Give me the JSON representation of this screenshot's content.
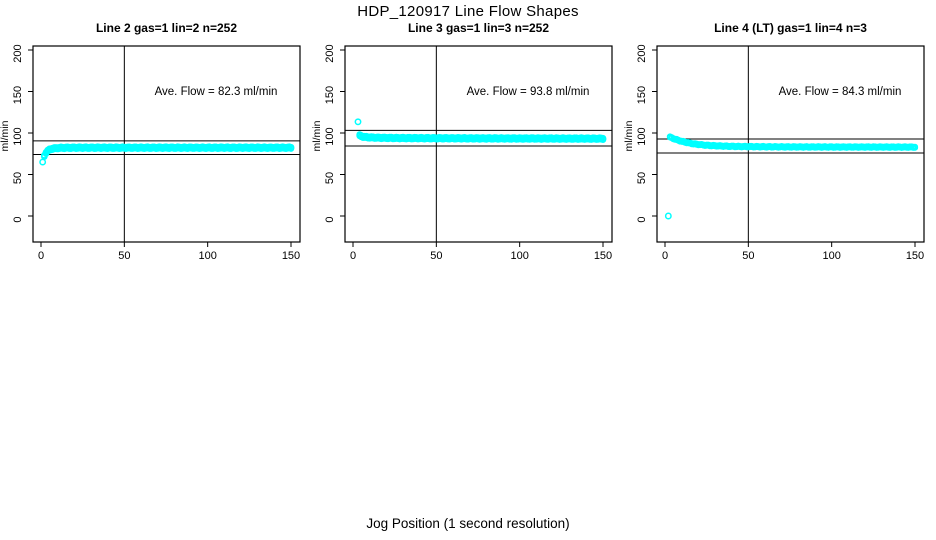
{
  "page": {
    "title": "HDP_120917  Line Flow Shapes",
    "xlabel": "Jog Position (1 second resolution)"
  },
  "chart_data": [
    {
      "type": "scatter",
      "title": "Line 2 gas=1 lin=2 n=252",
      "line": "Line 2",
      "gas": 1,
      "lin": 2,
      "n": 252,
      "ylabel": "ml/min",
      "annotation": "Ave. Flow =  82.3  ml/min",
      "ave_flow_ml_min": 82.3,
      "xticks": [
        0,
        50,
        100,
        150
      ],
      "yticks": [
        0,
        50,
        100,
        150,
        200
      ],
      "xlim": [
        0,
        150
      ],
      "ylim": [
        0,
        200
      ],
      "marker_color": "#00FFFF",
      "marker_shape": "open-circle",
      "vline_x": 50,
      "ref_lines_y": [
        90.5,
        74.1
      ],
      "outliers": [
        [
          1,
          65
        ]
      ],
      "curve": [
        [
          2,
          72.5
        ],
        [
          3,
          76.3
        ],
        [
          4,
          78.4
        ],
        [
          5,
          79.8
        ],
        [
          6,
          80.7
        ],
        [
          7,
          81.2
        ],
        [
          8,
          81.5
        ],
        [
          10,
          81.9
        ],
        [
          12,
          82.1
        ],
        [
          15,
          82.2
        ],
        [
          20,
          82.3
        ],
        [
          30,
          82.3
        ],
        [
          50,
          82.3
        ],
        [
          75,
          82.3
        ],
        [
          100,
          82.3
        ],
        [
          150,
          82.3
        ]
      ]
    },
    {
      "type": "scatter",
      "title": "Line 3 gas=1 lin=3 n=252",
      "line": "Line 3",
      "gas": 1,
      "lin": 3,
      "n": 252,
      "ylabel": "ml/min",
      "annotation": "Ave. Flow =  93.8  ml/min",
      "ave_flow_ml_min": 93.8,
      "xticks": [
        0,
        50,
        100,
        150
      ],
      "yticks": [
        0,
        50,
        100,
        150,
        200
      ],
      "xlim": [
        0,
        150
      ],
      "ylim": [
        0,
        200
      ],
      "marker_color": "#00FFFF",
      "marker_shape": "open-circle",
      "vline_x": 50,
      "ref_lines_y": [
        103.2,
        84.4
      ],
      "outliers": [
        [
          3,
          113.5
        ]
      ],
      "curve": [
        [
          4,
          97
        ],
        [
          5,
          96.2
        ],
        [
          6,
          95.6
        ],
        [
          7,
          95.2
        ],
        [
          8,
          95
        ],
        [
          10,
          94.7
        ],
        [
          12,
          94.5
        ],
        [
          15,
          94.3
        ],
        [
          20,
          94.1
        ],
        [
          30,
          93.9
        ],
        [
          50,
          93.7
        ],
        [
          75,
          93.5
        ],
        [
          100,
          93.4
        ],
        [
          125,
          93.3
        ],
        [
          150,
          93.2
        ]
      ]
    },
    {
      "type": "scatter",
      "title": "Line 4 (LT) gas=1 lin=4 n=3",
      "line": "Line 4 (LT)",
      "gas": 1,
      "lin": 4,
      "n": 3,
      "ylabel": "ml/min",
      "annotation": "Ave. Flow =  84.3  ml/min",
      "ave_flow_ml_min": 84.3,
      "xticks": [
        0,
        50,
        100,
        150
      ],
      "yticks": [
        0,
        50,
        100,
        150,
        200
      ],
      "xlim": [
        0,
        150
      ],
      "ylim": [
        0,
        200
      ],
      "marker_color": "#00FFFF",
      "marker_shape": "open-circle",
      "vline_x": 50,
      "ref_lines_y": [
        92.7,
        75.9
      ],
      "outliers": [
        [
          2,
          0
        ]
      ],
      "curve": [
        [
          3,
          95
        ],
        [
          4,
          94.2
        ],
        [
          5,
          93.4
        ],
        [
          6,
          92.6
        ],
        [
          7,
          91.9
        ],
        [
          8,
          91.2
        ],
        [
          10,
          90
        ],
        [
          12,
          89
        ],
        [
          15,
          87.7
        ],
        [
          18,
          86.7
        ],
        [
          20,
          86.2
        ],
        [
          25,
          85.2
        ],
        [
          30,
          84.6
        ],
        [
          35,
          84.2
        ],
        [
          40,
          83.9
        ],
        [
          45,
          83.7
        ],
        [
          50,
          83.6
        ],
        [
          60,
          83.4
        ],
        [
          75,
          83.2
        ],
        [
          100,
          83.1
        ],
        [
          150,
          83
        ]
      ]
    }
  ]
}
